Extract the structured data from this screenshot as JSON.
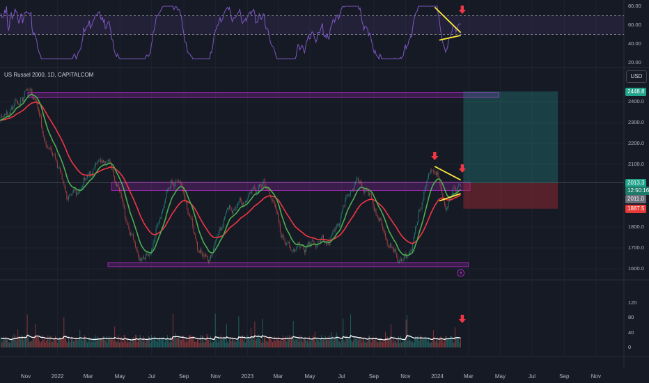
{
  "symbol_title": "US Russel 2000, 1D, CAPITALCOM",
  "currency": "USD",
  "price_tags": {
    "target": "2448.8",
    "last": "2013.3",
    "countdown": "12:50:16",
    "entry": "2011.0",
    "stop": "1887.5"
  },
  "colors": {
    "background": "#161a25",
    "rsi_line": "#7e57c2",
    "ema_fast": "#4caf50",
    "ema_slow": "#f23645",
    "zone": "#9c27b0",
    "target_zone": "#26a69a",
    "stop_zone": "#a32b33",
    "trendline": "#ffeb3b",
    "arrow": "#f23645",
    "volume_ma": "#ffffff"
  },
  "chart_data": [
    {
      "type": "line",
      "panel": "rsi",
      "y_ticks": [
        "80.00",
        "60.00",
        "40.00",
        "20.00"
      ],
      "ylim": [
        20,
        80
      ],
      "band": [
        50,
        70
      ]
    },
    {
      "type": "candlestick",
      "panel": "price",
      "x_ticks": [
        "Nov",
        "2022",
        "Mar",
        "May",
        "Jul",
        "Sep",
        "Nov",
        "2023",
        "Mar",
        "May",
        "Jul",
        "Sep",
        "Nov",
        "2024",
        "Mar",
        "May",
        "Jul",
        "Sep",
        "Nov"
      ],
      "y_ticks": [
        "2400.0",
        "2300.0",
        "2200.0",
        "2100.0",
        "1800.0",
        "1700.0",
        "1600.0"
      ],
      "ylim": [
        1590,
        2470
      ],
      "series": [
        {
          "name": "",
          "kind": "ema_fast"
        },
        {
          "name": "",
          "kind": "ema_slow"
        }
      ],
      "key_points": [
        {
          "date": "2021-11-08",
          "price": 2458
        },
        {
          "date": "2021-12-20",
          "price": 2160
        },
        {
          "date": "2022-01-24",
          "price": 1950
        },
        {
          "date": "2022-04-01",
          "price": 2120
        },
        {
          "date": "2022-06-16",
          "price": 1650
        },
        {
          "date": "2022-08-16",
          "price": 2020
        },
        {
          "date": "2022-10-13",
          "price": 1650
        },
        {
          "date": "2022-12-01",
          "price": 1890
        },
        {
          "date": "2023-02-02",
          "price": 2000
        },
        {
          "date": "2023-03-24",
          "price": 1700
        },
        {
          "date": "2023-05-31",
          "price": 1730
        },
        {
          "date": "2023-07-31",
          "price": 2010
        },
        {
          "date": "2023-10-27",
          "price": 1640
        },
        {
          "date": "2023-12-27",
          "price": 2080
        },
        {
          "date": "2024-01-17",
          "price": 1910
        },
        {
          "date": "2024-02-15",
          "price": 2013
        }
      ],
      "zones": [
        {
          "from": "2021-11-05",
          "to": "2024-04-28",
          "low": 2420,
          "high": 2445
        },
        {
          "from": "2022-04-15",
          "to": "2024-03-04",
          "low": 1975,
          "high": 2015
        },
        {
          "from": "2022-04-08",
          "to": "2024-03-01",
          "low": 1610,
          "high": 1630
        }
      ],
      "position": {
        "from": "2024-02-20",
        "to": "2024-08-20",
        "entry": 2011.0,
        "target": 2448.8,
        "stop": 1887.5
      }
    },
    {
      "type": "bar",
      "panel": "volume",
      "y_ticks": [
        "120",
        "80",
        "40",
        "0"
      ],
      "ylim": [
        0,
        125
      ]
    }
  ]
}
